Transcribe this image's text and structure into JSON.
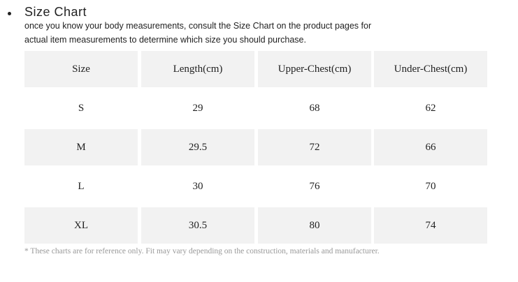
{
  "header": {
    "title": "Size Chart",
    "description": [
      "once you know your body measurements, consult the Size Chart on the product pages for",
      "actual item measurements to determine which size you should purchase."
    ]
  },
  "table": {
    "columns": [
      "Size",
      "Length(cm)",
      "Upper-Chest(cm)",
      "Under-Chest(cm)"
    ],
    "rows": [
      [
        "S",
        "29",
        "68",
        "62"
      ],
      [
        "M",
        "29.5",
        "72",
        "66"
      ],
      [
        "L",
        "30",
        "76",
        "70"
      ],
      [
        "XL",
        "30.5",
        "80",
        "74"
      ]
    ]
  },
  "footnote": "* These charts are for reference only. Fit may vary depending on the construction, materials and manufacturer."
}
